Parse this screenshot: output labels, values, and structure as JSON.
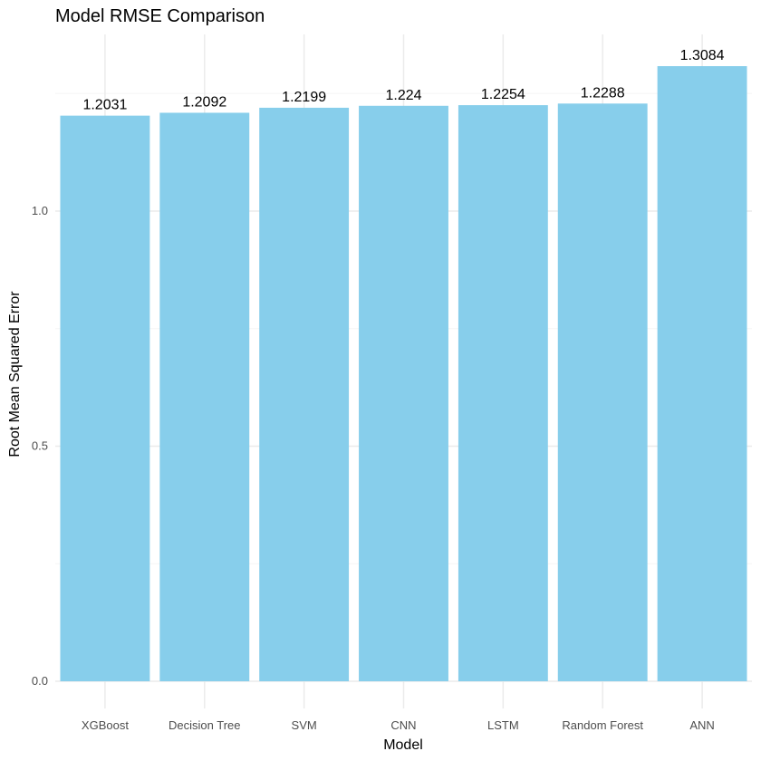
{
  "chart_data": {
    "type": "bar",
    "title": "Model RMSE Comparison",
    "xlabel": "Model",
    "ylabel": "Root Mean Squared Error",
    "categories": [
      "XGBoost",
      "Decision Tree",
      "SVM",
      "CNN",
      "LSTM",
      "Random Forest",
      "ANN"
    ],
    "values": [
      1.2031,
      1.2092,
      1.2199,
      1.224,
      1.2254,
      1.2288,
      1.3084
    ],
    "data_labels": [
      "1.2031",
      "1.2092",
      "1.2199",
      "1.224",
      "1.2254",
      "1.2288",
      "1.3084"
    ],
    "ylim": [
      0,
      1.3084
    ],
    "y_ticks": [
      0,
      0.5,
      1
    ],
    "y_tick_labels": [
      "0.0",
      "0.5",
      "1.0"
    ],
    "y_minor_ticks": [
      0.25,
      0.75,
      1.25
    ],
    "grid": true,
    "legend": "none",
    "colors": {
      "bar": "#87CEEB",
      "grid_major": "#EBEBEB",
      "grid_minor": "#F5F5F5",
      "text": "#000000",
      "tick_text": "#4D4D4D"
    }
  }
}
